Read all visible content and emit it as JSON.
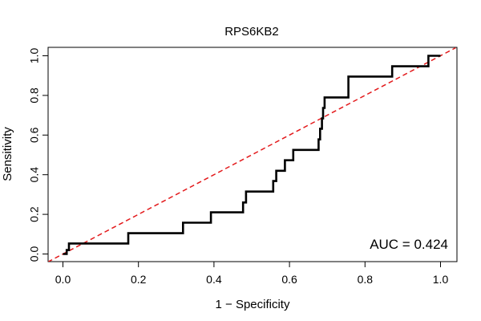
{
  "chart_data": {
    "type": "line",
    "title": "RPS6KB2",
    "xlabel": "1 − Specificity",
    "ylabel": "Sensitivity",
    "xlim": [
      0,
      1
    ],
    "ylim": [
      0,
      1
    ],
    "x_ticks": [
      "0.0",
      "0.2",
      "0.4",
      "0.6",
      "0.8",
      "1.0"
    ],
    "y_ticks": [
      "0.0",
      "0.2",
      "0.4",
      "0.6",
      "0.8",
      "1.0"
    ],
    "annotation": "AUC = 0.424",
    "series": [
      {
        "name": "ROC curve",
        "color": "#000000",
        "points": [
          [
            0.0,
            0.0
          ],
          [
            0.01,
            0.0
          ],
          [
            0.01,
            0.02
          ],
          [
            0.016,
            0.02
          ],
          [
            0.016,
            0.053
          ],
          [
            0.173,
            0.053
          ],
          [
            0.173,
            0.105
          ],
          [
            0.318,
            0.105
          ],
          [
            0.318,
            0.158
          ],
          [
            0.392,
            0.158
          ],
          [
            0.392,
            0.21
          ],
          [
            0.477,
            0.21
          ],
          [
            0.477,
            0.26
          ],
          [
            0.485,
            0.26
          ],
          [
            0.485,
            0.315
          ],
          [
            0.557,
            0.315
          ],
          [
            0.557,
            0.368
          ],
          [
            0.565,
            0.368
          ],
          [
            0.565,
            0.42
          ],
          [
            0.588,
            0.42
          ],
          [
            0.588,
            0.473
          ],
          [
            0.61,
            0.473
          ],
          [
            0.61,
            0.525
          ],
          [
            0.677,
            0.525
          ],
          [
            0.677,
            0.578
          ],
          [
            0.681,
            0.578
          ],
          [
            0.681,
            0.632
          ],
          [
            0.686,
            0.632
          ],
          [
            0.686,
            0.684
          ],
          [
            0.689,
            0.684
          ],
          [
            0.689,
            0.737
          ],
          [
            0.693,
            0.737
          ],
          [
            0.693,
            0.79
          ],
          [
            0.756,
            0.79
          ],
          [
            0.756,
            0.895
          ],
          [
            0.872,
            0.895
          ],
          [
            0.872,
            0.947
          ],
          [
            0.968,
            0.947
          ],
          [
            0.968,
            1.0
          ],
          [
            1.0,
            1.0
          ]
        ]
      },
      {
        "name": "Reference diagonal",
        "color": "#e31a1c",
        "dashed": true,
        "points": [
          [
            -0.04,
            -0.04
          ],
          [
            1.04,
            1.04
          ]
        ]
      }
    ]
  }
}
